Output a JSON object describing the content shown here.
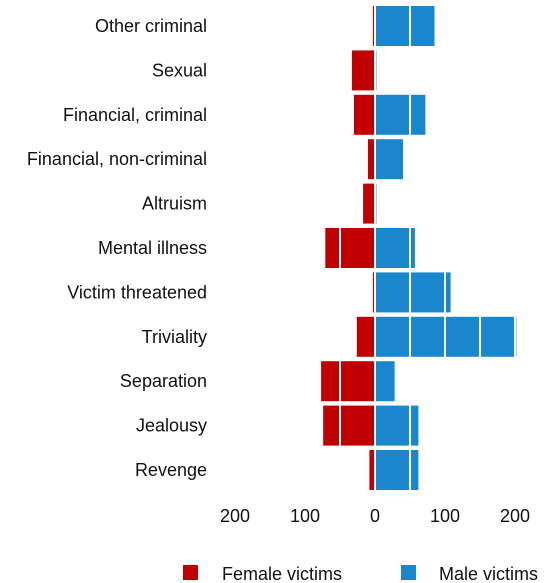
{
  "chart_data": {
    "type": "bar",
    "orientation": "horizontal-diverging",
    "categories": [
      "Other criminal",
      "Sexual",
      "Financial, criminal",
      "Financial, non-criminal",
      "Altruism",
      "Mental illness",
      "Victim threatened",
      "Triviality",
      "Separation",
      "Jealousy",
      "Revenge"
    ],
    "series": [
      {
        "name": "Female victims",
        "values": [
          3,
          33,
          30,
          10,
          17,
          71,
          3,
          26,
          77,
          74,
          8
        ],
        "color": "#c00000",
        "side": "left"
      },
      {
        "name": "Male victims",
        "values": [
          85,
          2,
          72,
          40,
          2,
          57,
          108,
          202,
          28,
          62,
          62
        ],
        "color": "#1a86cc",
        "side": "right"
      }
    ],
    "xticks": [
      {
        "value": -200,
        "label": "200"
      },
      {
        "value": -100,
        "label": "100"
      },
      {
        "value": 0,
        "label": "0"
      },
      {
        "value": 100,
        "label": "100"
      },
      {
        "value": 200,
        "label": "200"
      }
    ],
    "xlim": [
      -200,
      200
    ],
    "segment_step": 50,
    "legend_position": "bottom",
    "grid": false,
    "title": "",
    "xlabel": "",
    "ylabel": ""
  }
}
